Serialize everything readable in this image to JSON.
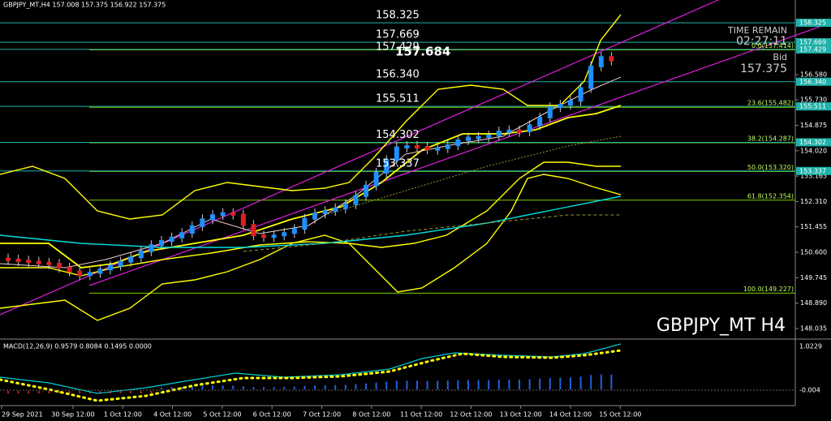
{
  "header": "GBPJPY_MT,H4  157.008 157.375 156.922 157.375",
  "big_price": "157.684",
  "symbol_label": "GBPJPY_MT H4",
  "timer": {
    "title": "TIME REMAIN",
    "time": "02:27:11",
    "bid_label": "Bid",
    "bid": "157.375"
  },
  "price_axis": [
    {
      "value": 156.58,
      "label": "156.580"
    },
    {
      "value": 155.73,
      "label": "155.730"
    },
    {
      "value": 154.875,
      "label": "154.875"
    },
    {
      "value": 154.02,
      "label": "154.020"
    },
    {
      "value": 153.165,
      "label": "153.165"
    },
    {
      "value": 152.31,
      "label": "152.310"
    },
    {
      "value": 151.455,
      "label": "151.455"
    },
    {
      "value": 150.6,
      "label": "150.600"
    },
    {
      "value": 149.745,
      "label": "149.745"
    },
    {
      "value": 148.89,
      "label": "148.890"
    },
    {
      "value": 148.035,
      "label": "148.035"
    }
  ],
  "levels": [
    158.325,
    157.669,
    157.429,
    {
      "value": 156.34,
      "label": "156.340"
    },
    155.511,
    154.302,
    153.337
  ],
  "fibs": [
    {
      "label": "0.0(157.414)",
      "value": 157.414
    },
    {
      "label": "23.6(155.482)",
      "value": 155.482
    },
    {
      "label": "38.2(154.287)",
      "value": 154.287
    },
    {
      "label": "50.0(153.320)",
      "value": 153.32
    },
    {
      "label": "61.8(152.354)",
      "value": 152.354
    },
    {
      "label": "100.0(149.227)",
      "value": 149.227
    }
  ],
  "macd": {
    "label": "MACD(12,26,9) 0.9579 0.8084 0.1495 0.0000",
    "axis_top": "1.0229",
    "axis_bottom": "-0.004"
  },
  "time_axis": [
    "29 Sep 2021",
    "30 Sep 12:00",
    "1 Oct 12:00",
    "4 Oct 12:00",
    "5 Oct 12:00",
    "6 Oct 12:00",
    "7 Oct 12:00",
    "8 Oct 12:00",
    "11 Oct 12:00",
    "12 Oct 12:00",
    "13 Oct 12:00",
    "14 Oct 12:00",
    "15 Oct 12:00"
  ]
}
